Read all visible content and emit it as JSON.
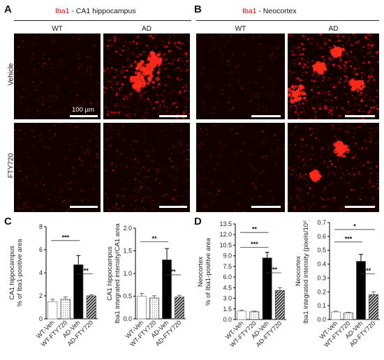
{
  "figure": {
    "panels": {
      "A": {
        "letter": "A",
        "stain": "Iba1",
        "title_rest": " - CA1 hippocampus",
        "col1": "WT",
        "col2": "AD"
      },
      "B": {
        "letter": "B",
        "stain": "Iba1",
        "title_rest": " - Neocortex",
        "col1": "WT",
        "col2": "AD"
      },
      "C": {
        "letter": "C"
      },
      "D": {
        "letter": "D"
      }
    },
    "rows": {
      "vehicle": "Vehicle",
      "fty": "FTY720"
    },
    "scale_bar_label": "100 µm"
  },
  "colors": {
    "stain": "#e00000",
    "bar_dark": "#000000",
    "background": "#120000"
  },
  "chart_data": [
    {
      "type": "bar",
      "panel": "C",
      "ylabel_lines": [
        "CA1 hippocampus",
        "% of Iba1-positive area"
      ],
      "ylim": [
        0,
        8
      ],
      "yticks": [
        "0",
        "2",
        "4",
        "6",
        "8"
      ],
      "categories": [
        "WT-Veh",
        "WT-FTY720",
        "AD-Veh",
        "AD-FTY720"
      ],
      "values": [
        1.5,
        1.7,
        4.7,
        2.0
      ],
      "errors": [
        0.2,
        0.2,
        0.8,
        0.1
      ],
      "fills": [
        "white",
        "dotted",
        "black",
        "hatched"
      ],
      "sig": [
        {
          "from": 0,
          "to": 2,
          "label": "***",
          "level": 6.8
        },
        {
          "from": 2,
          "to": 3,
          "label": "***",
          "level": 3.9
        }
      ]
    },
    {
      "type": "bar",
      "panel": "C",
      "ylabel_lines": [
        "CA1 hippocampus",
        "Iba1 integrated intensity/CA1 area"
      ],
      "ylim": [
        0,
        2.0
      ],
      "yticks": [
        "0.0",
        "0.5",
        "1.0",
        "1.5",
        "2.0"
      ],
      "categories": [
        "WT-Veh",
        "WT-FTY720",
        "AD-Veh",
        "AD-FTY720"
      ],
      "values": [
        0.5,
        0.46,
        1.3,
        0.48
      ],
      "errors": [
        0.06,
        0.05,
        0.25,
        0.04
      ],
      "fills": [
        "white",
        "dotted",
        "black",
        "hatched"
      ],
      "sig": [
        {
          "from": 0,
          "to": 2,
          "label": "**",
          "level": 1.7
        },
        {
          "from": 2,
          "to": 3,
          "label": "**",
          "level": 0.97
        }
      ]
    },
    {
      "type": "bar",
      "panel": "D",
      "ylabel_lines": [
        "Neocortex",
        "% of Iba1-positive area"
      ],
      "ylim": [
        0,
        13.5
      ],
      "yticks": [
        "0.0",
        "1.5",
        "3.0",
        "4.5",
        "6.0",
        "7.5",
        "9.0",
        "10.5",
        "12.0",
        "13.5"
      ],
      "categories": [
        "WT-Veh",
        "WT-FTY720",
        "AD-Veh",
        "AD-FTY720"
      ],
      "values": [
        1.2,
        1.1,
        8.7,
        4.1
      ],
      "errors": [
        0.1,
        0.1,
        0.8,
        0.4
      ],
      "fills": [
        "white",
        "dotted",
        "black",
        "hatched"
      ],
      "sig": [
        {
          "from": 0,
          "to": 2,
          "label": "**",
          "level": 12.3
        },
        {
          "from": 0,
          "to": 2,
          "label": "***",
          "level": 10.2
        },
        {
          "from": 2,
          "to": 3,
          "label": "***",
          "level": 6.6
        }
      ]
    },
    {
      "type": "bar",
      "panel": "D",
      "ylabel_lines": [
        "Neocortex",
        "Iba1 integrated intensity (pixels/10⁶)"
      ],
      "ylim": [
        0,
        0.7
      ],
      "yticks": [
        "0.0",
        "0.1",
        "0.2",
        "0.3",
        "0.4",
        "0.5",
        "0.6",
        "0.7"
      ],
      "categories": [
        "WT-Veh",
        "WT-FTY720",
        "AD-Veh",
        "AD-FTY720"
      ],
      "values": [
        0.055,
        0.048,
        0.42,
        0.18
      ],
      "errors": [
        0.005,
        0.004,
        0.05,
        0.02
      ],
      "fills": [
        "white",
        "dotted",
        "black",
        "hatched"
      ],
      "sig": [
        {
          "from": 0,
          "to": 3,
          "label": "*",
          "level": 0.65
        },
        {
          "from": 0,
          "to": 2,
          "label": "***",
          "level": 0.56
        },
        {
          "from": 2,
          "to": 3,
          "label": "***",
          "level": 0.33
        }
      ]
    }
  ]
}
